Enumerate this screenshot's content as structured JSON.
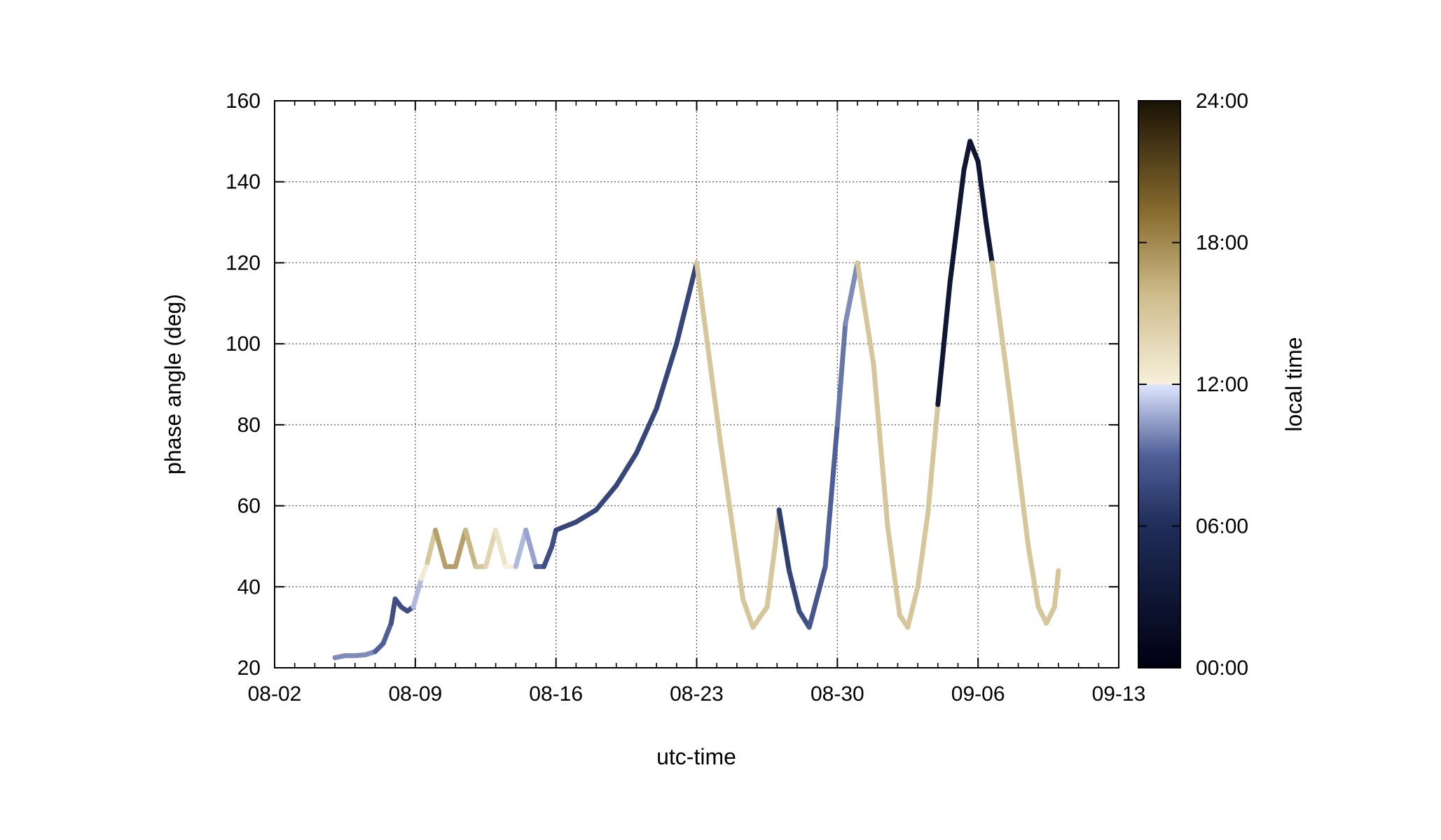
{
  "chart_data": {
    "type": "line",
    "xlabel": "utc-time",
    "ylabel": "phase angle (deg)",
    "colorbar_label": "local time",
    "x_ticks": [
      "08-02",
      "08-09",
      "08-16",
      "08-23",
      "08-30",
      "09-06",
      "09-13"
    ],
    "y_ticks": [
      "20",
      "40",
      "60",
      "80",
      "100",
      "120",
      "140",
      "160"
    ],
    "colorbar_ticks": [
      "00:00",
      "06:00",
      "12:00",
      "18:00",
      "24:00"
    ],
    "xlim": [
      "08-02",
      "09-13"
    ],
    "ylim": [
      20,
      160
    ],
    "colorbar_range_hours": [
      0,
      24
    ],
    "grid": true,
    "color_encoding": "local time (hours)",
    "series": [
      {
        "x": [
          "08-05",
          "08-05.5",
          "08-06",
          "08-06.5",
          "08-07",
          "08-07.4",
          "08-07.8",
          "08-08.0",
          "08-08.3",
          "08-08.6",
          "08-08.9",
          "08-09.3",
          "08-09.6",
          "08-10.0",
          "08-10.5",
          "08-11.0",
          "08-11.5",
          "08-12.0",
          "08-12.5",
          "08-13.0",
          "08-13.5",
          "08-14.0",
          "08-14.5",
          "08-15.0",
          "08-15.4",
          "08-15.8",
          "08-16.0",
          "08-17.0",
          "08-18.0",
          "08-19.0",
          "08-20.0",
          "08-21.0",
          "08-22.0",
          "08-22.6",
          "08-23.0"
        ],
        "y": [
          22.5,
          23,
          23,
          23.2,
          24,
          26,
          31,
          37,
          35,
          34,
          35,
          42,
          46,
          54,
          45,
          45,
          54,
          45,
          45,
          54,
          45,
          45,
          54,
          45,
          45,
          50,
          54,
          56,
          59,
          65,
          73,
          84,
          100,
          112,
          120
        ],
        "local_time": [
          10,
          10,
          10,
          10,
          9,
          9,
          8,
          8,
          8,
          8,
          11,
          12.5,
          15,
          17,
          17,
          17,
          16,
          15,
          14,
          13,
          12,
          11,
          10.5,
          9,
          8,
          8,
          7.5,
          7.5,
          7.5,
          7.5,
          7.5,
          7.5,
          7.5,
          7.5,
          7.5
        ]
      },
      {
        "x": [
          "08-23.0",
          "08-24.2",
          "08-25.3",
          "08-25.8",
          "08-26.5",
          "08-26.9",
          "08-27.1",
          "08-27.6",
          "08-28.1",
          "08-28.6",
          "08-29.4",
          "08-30.0",
          "08-30.4",
          "08-31.0",
          "08-31.8",
          "09-01.5",
          "09-02.1",
          "09-02.5",
          "09-03.0",
          "09-03.5",
          "09-04.0",
          "09-04.6",
          "09-05.3",
          "09-05.6",
          "09-06.0",
          "09-06.4",
          "09-06.7",
          "09-07.5",
          "09-08.5",
          "09-09.0",
          "09-09.4",
          "09-09.8",
          "09-10.0"
        ],
        "y": [
          120,
          75,
          37,
          30,
          35,
          50,
          59,
          44,
          34,
          30,
          45,
          80,
          105,
          120,
          95,
          55,
          33,
          30,
          40,
          58,
          85,
          115,
          143,
          150,
          145,
          130,
          120,
          90,
          50,
          35,
          31,
          35,
          44
        ],
        "local_time": [
          15,
          15,
          15,
          15,
          15,
          15,
          7,
          7.5,
          8,
          8.5,
          9,
          9.5,
          10,
          15,
          15,
          15,
          15,
          15,
          15,
          15,
          3,
          3,
          3,
          3,
          3,
          3,
          15,
          15,
          15,
          15,
          15,
          15,
          15
        ]
      }
    ],
    "colors": {
      "colormap": [
        "#000010",
        "#1f2d5a",
        "#5d6fa8",
        "#e0e8ff",
        "#f5ecd5",
        "#b8a26c",
        "#3a2a05",
        "#1a1205"
      ],
      "axis": "#000000",
      "grid": "#555555"
    }
  }
}
